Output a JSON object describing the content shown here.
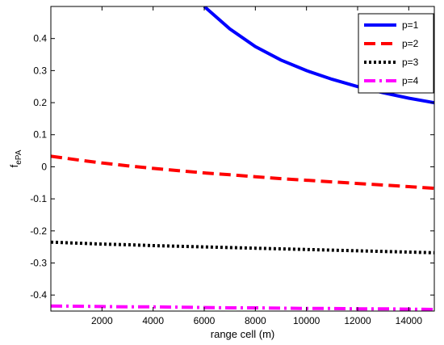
{
  "chart_data": {
    "type": "line",
    "xlabel": "range cell (m)",
    "ylabel": {
      "main": "f",
      "sub": "ePA"
    },
    "xlim": [
      0,
      15000
    ],
    "ylim": [
      -0.45,
      0.5
    ],
    "xticks": [
      2000,
      4000,
      6000,
      8000,
      10000,
      12000,
      14000
    ],
    "yticks": [
      -0.4,
      -0.3,
      -0.2,
      -0.1,
      0,
      0.1,
      0.2,
      0.3,
      0.4
    ],
    "xtick_labels": [
      "2000",
      "4000",
      "6000",
      "8000",
      "10000",
      "12000",
      "14000"
    ],
    "ytick_labels": [
      "-0.4",
      "-0.3",
      "-0.2",
      "-0.1",
      "0",
      "0.1",
      "0.2",
      "0.3",
      "0.4"
    ],
    "grid": false,
    "legend_position": "top-right",
    "series": [
      {
        "name": "p=1",
        "color": "#0000ff",
        "style": "solid",
        "x": [
          6000,
          7000,
          8000,
          9000,
          10000,
          11000,
          12000,
          13000,
          14000,
          15000
        ],
        "y": [
          0.5,
          0.43,
          0.375,
          0.333,
          0.3,
          0.273,
          0.25,
          0.231,
          0.214,
          0.2
        ]
      },
      {
        "name": "p=2",
        "color": "#ff0000",
        "style": "dashed",
        "x": [
          0,
          1000,
          2000,
          3000,
          4000,
          5000,
          6000,
          7000,
          8000,
          9000,
          10000,
          11000,
          12000,
          13000,
          14000,
          15000
        ],
        "y": [
          0.033,
          0.022,
          0.012,
          0.003,
          -0.005,
          -0.012,
          -0.019,
          -0.025,
          -0.031,
          -0.037,
          -0.042,
          -0.047,
          -0.052,
          -0.057,
          -0.062,
          -0.067
        ]
      },
      {
        "name": "p=3",
        "color": "#000000",
        "style": "dotted",
        "x": [
          0,
          1000,
          2000,
          3000,
          4000,
          5000,
          6000,
          7000,
          8000,
          9000,
          10000,
          11000,
          12000,
          13000,
          14000,
          15000
        ],
        "y": [
          -0.235,
          -0.238,
          -0.241,
          -0.243,
          -0.246,
          -0.248,
          -0.25,
          -0.252,
          -0.254,
          -0.256,
          -0.258,
          -0.26,
          -0.262,
          -0.264,
          -0.266,
          -0.268
        ]
      },
      {
        "name": "p=4",
        "color": "#ff00ff",
        "style": "dashdot",
        "x": [
          0,
          1000,
          2000,
          3000,
          4000,
          5000,
          6000,
          7000,
          8000,
          9000,
          10000,
          11000,
          12000,
          13000,
          14000,
          15000
        ],
        "y": [
          -0.434,
          -0.435,
          -0.436,
          -0.437,
          -0.437,
          -0.438,
          -0.439,
          -0.44,
          -0.44,
          -0.441,
          -0.442,
          -0.442,
          -0.443,
          -0.443,
          -0.444,
          -0.445
        ]
      }
    ]
  }
}
